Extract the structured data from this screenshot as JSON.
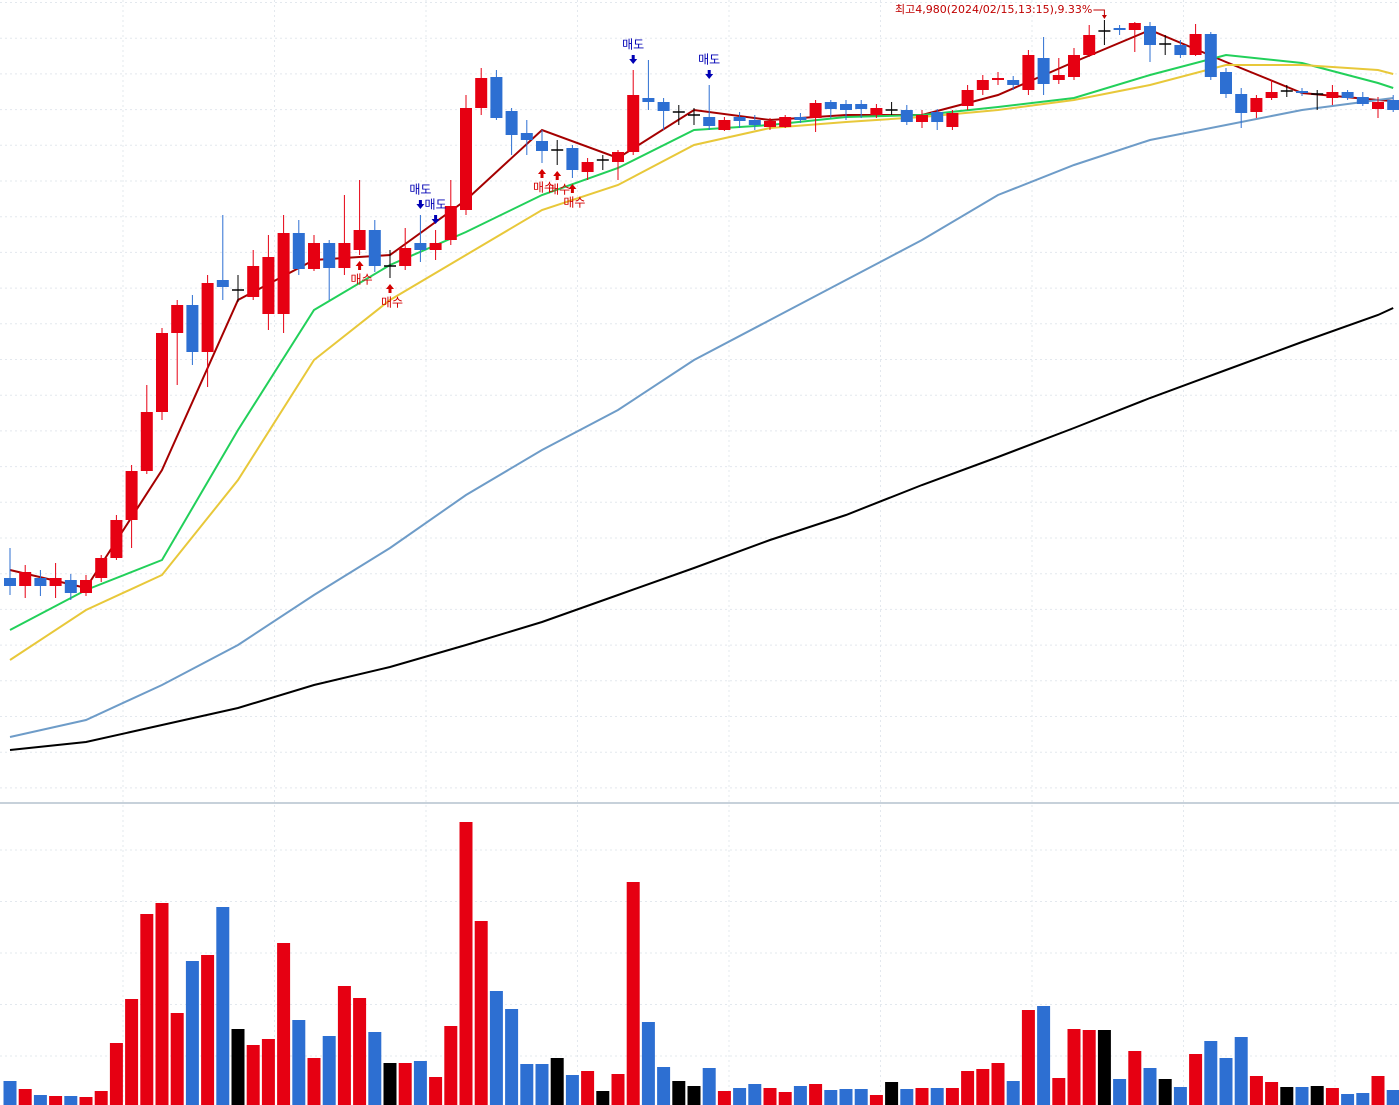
{
  "chart_data": {
    "type": "candlestick",
    "grid": true,
    "up_color": "#e60012",
    "down_color": "#2d6fd2",
    "flat_color": "#000000",
    "ylim": [
      4200,
      5000
    ],
    "volume_ylim": [
      0,
      300
    ],
    "open": [
      4422,
      4414,
      4422,
      4414,
      4420,
      4407,
      4422,
      4442,
      4480,
      4529,
      4588,
      4667,
      4695,
      4648,
      4720,
      4710,
      4703,
      4686,
      4686,
      4767,
      4731,
      4757,
      4732,
      4750,
      4770,
      4734,
      4734,
      4757,
      4750,
      4760,
      4790,
      4892,
      4923,
      4889,
      4867,
      4859,
      4850,
      4852,
      4828,
      4840,
      4838,
      4848,
      4902,
      4898,
      4888,
      4885,
      4883,
      4870,
      4883,
      4880,
      4873,
      4873,
      4883,
      4882,
      4898,
      4896,
      4896,
      4885,
      4890,
      4890,
      4878,
      4888,
      4873,
      4894,
      4910,
      4920,
      4920,
      4910,
      4942,
      4920,
      4923,
      4945,
      4969,
      4972,
      4970,
      4974,
      4956,
      4955,
      4945,
      4966,
      4928,
      4906,
      4888,
      4902,
      4909,
      4909,
      4906,
      4902,
      4908,
      4903,
      4891,
      4900
    ],
    "high": [
      4452,
      4435,
      4430,
      4437,
      4426,
      4425,
      4445,
      4485,
      4535,
      4615,
      4672,
      4700,
      4705,
      4725,
      4785,
      4725,
      4750,
      4765,
      4785,
      4780,
      4765,
      4760,
      4805,
      4820,
      4780,
      4750,
      4772,
      4785,
      4770,
      4820,
      4905,
      4932,
      4930,
      4892,
      4880,
      4870,
      4860,
      4855,
      4842,
      4845,
      4850,
      4930,
      4940,
      4902,
      4895,
      4892,
      4915,
      4883,
      4888,
      4885,
      4882,
      4885,
      4887,
      4900,
      4900,
      4900,
      4900,
      4896,
      4898,
      4895,
      4890,
      4891,
      4890,
      4915,
      4925,
      4928,
      4924,
      4950,
      4963,
      4942,
      4952,
      4975,
      4980,
      4975,
      4978,
      4978,
      4965,
      4960,
      4976,
      4968,
      4932,
      4912,
      4905,
      4920,
      4915,
      4912,
      4910,
      4915,
      4910,
      4908,
      4903,
      4905
    ],
    "low": [
      4405,
      4402,
      4404,
      4402,
      4400,
      4404,
      4418,
      4440,
      4452,
      4526,
      4580,
      4615,
      4635,
      4613,
      4700,
      4698,
      4700,
      4670,
      4667,
      4725,
      4729,
      4700,
      4725,
      4745,
      4728,
      4722,
      4730,
      4738,
      4740,
      4755,
      4785,
      4885,
      4880,
      4845,
      4845,
      4837,
      4835,
      4822,
      4820,
      4830,
      4820,
      4845,
      4890,
      4870,
      4875,
      4875,
      4870,
      4869,
      4872,
      4870,
      4870,
      4872,
      4877,
      4868,
      4882,
      4880,
      4882,
      4882,
      4885,
      4875,
      4872,
      4870,
      4870,
      4890,
      4905,
      4915,
      4910,
      4905,
      4905,
      4916,
      4920,
      4943,
      4955,
      4965,
      4948,
      4938,
      4945,
      4942,
      4944,
      4920,
      4902,
      4872,
      4882,
      4900,
      4903,
      4904,
      4890,
      4895,
      4900,
      4894,
      4882,
      4888
    ],
    "close": [
      4414,
      4428,
      4414,
      4422,
      4407,
      4420,
      4442,
      4480,
      4529,
      4588,
      4667,
      4695,
      4648,
      4717,
      4713,
      4710,
      4734,
      4743,
      4767,
      4731,
      4757,
      4732,
      4757,
      4770,
      4734,
      4734,
      4752,
      4750,
      4757,
      4794,
      4892,
      4922,
      4882,
      4865,
      4860,
      4849,
      4850,
      4830,
      4838,
      4840,
      4848,
      4905,
      4898,
      4889,
      4888,
      4885,
      4874,
      4880,
      4879,
      4875,
      4879,
      4883,
      4880,
      4897,
      4891,
      4890,
      4891,
      4892,
      4890,
      4878,
      4885,
      4878,
      4887,
      4910,
      4920,
      4922,
      4915,
      4945,
      4916,
      4925,
      4945,
      4965,
      4969,
      4970,
      4977,
      4955,
      4956,
      4945,
      4966,
      4923,
      4906,
      4887,
      4902,
      4908,
      4909,
      4907,
      4906,
      4908,
      4902,
      4896,
      4898,
      4890
    ],
    "volume": [
      24,
      16,
      10,
      9,
      9,
      8,
      14,
      62,
      106,
      191,
      202,
      92,
      144,
      150,
      198,
      76,
      60,
      66,
      162,
      85,
      47,
      69,
      119,
      107,
      73,
      42,
      42,
      44,
      28,
      79,
      283,
      184,
      114,
      96,
      41,
      41,
      47,
      30,
      34,
      14,
      31,
      223,
      83,
      38,
      24,
      19,
      37,
      14,
      17,
      21,
      17,
      13,
      19,
      21,
      15,
      16,
      16,
      10,
      23,
      16,
      17,
      17,
      17,
      34,
      36,
      42,
      24,
      95,
      99,
      27,
      76,
      75,
      75,
      26,
      54,
      37,
      26,
      18,
      51,
      64,
      47,
      68,
      29,
      23,
      18,
      18,
      19,
      17,
      11,
      12,
      29,
      15
    ],
    "moving_averages": [
      {
        "color": "#a50000",
        "x": [
          0,
          5,
          10,
          15,
          20,
          25,
          30,
          35,
          40,
          45,
          50,
          55,
          60,
          65,
          70,
          75,
          80,
          85,
          90,
          91
        ],
        "values": [
          4430,
          4412,
          4530,
          4700,
          4740,
          4745,
          4800,
          4870,
          4842,
          4890,
          4880,
          4885,
          4885,
          4905,
          4938,
          4970,
          4938,
          4907,
          4900,
          4899
        ]
      },
      {
        "color": "#22d05a",
        "x": [
          0,
          5,
          10,
          15,
          20,
          25,
          30,
          35,
          40,
          45,
          50,
          55,
          60,
          65,
          70,
          75,
          80,
          85,
          90,
          91
        ],
        "values": [
          4370,
          4410,
          4440,
          4570,
          4690,
          4735,
          4768,
          4805,
          4832,
          4870,
          4875,
          4883,
          4885,
          4893,
          4902,
          4925,
          4945,
          4937,
          4917,
          4912
        ]
      },
      {
        "color": "#e8c83a",
        "x": [
          0,
          5,
          10,
          15,
          20,
          25,
          30,
          35,
          40,
          45,
          50,
          55,
          60,
          65,
          70,
          75,
          80,
          85,
          90,
          91
        ],
        "values": [
          4340,
          4390,
          4425,
          4520,
          4640,
          4700,
          4745,
          4790,
          4815,
          4855,
          4872,
          4878,
          4883,
          4890,
          4900,
          4915,
          4935,
          4935,
          4930,
          4926
        ]
      },
      {
        "color": "#6e9cc8",
        "x": [
          0,
          5,
          10,
          15,
          20,
          25,
          30,
          35,
          40,
          45,
          50,
          55,
          60,
          65,
          70,
          75,
          80,
          85,
          90,
          91
        ],
        "values": [
          4263,
          4280,
          4315,
          4355,
          4405,
          4452,
          4505,
          4550,
          4590,
          4640,
          4680,
          4720,
          4760,
          4805,
          4835,
          4860,
          4875,
          4890,
          4900,
          4902
        ]
      },
      {
        "color": "#000000",
        "x": [
          0,
          5,
          10,
          15,
          20,
          25,
          30,
          35,
          40,
          45,
          50,
          55,
          60,
          65,
          70,
          75,
          80,
          85,
          90,
          91
        ],
        "values": [
          4250,
          4258,
          4275,
          4292,
          4315,
          4333,
          4355,
          4378,
          4405,
          4432,
          4460,
          4485,
          4515,
          4543,
          4572,
          4602,
          4630,
          4658,
          4685,
          4692
        ]
      }
    ],
    "buy_signals": {
      "label": "매수",
      "color": "#d40000",
      "candles": [
        23,
        25,
        35,
        36,
        37
      ]
    },
    "sell_signals": {
      "label": "매도",
      "color": "#0000b4",
      "candles": [
        27,
        28,
        41,
        46
      ]
    },
    "high_annotation": {
      "text": "최고4,980(2024/02/15,13:15),9.33%",
      "color": "#c00000",
      "candle": 72
    }
  }
}
